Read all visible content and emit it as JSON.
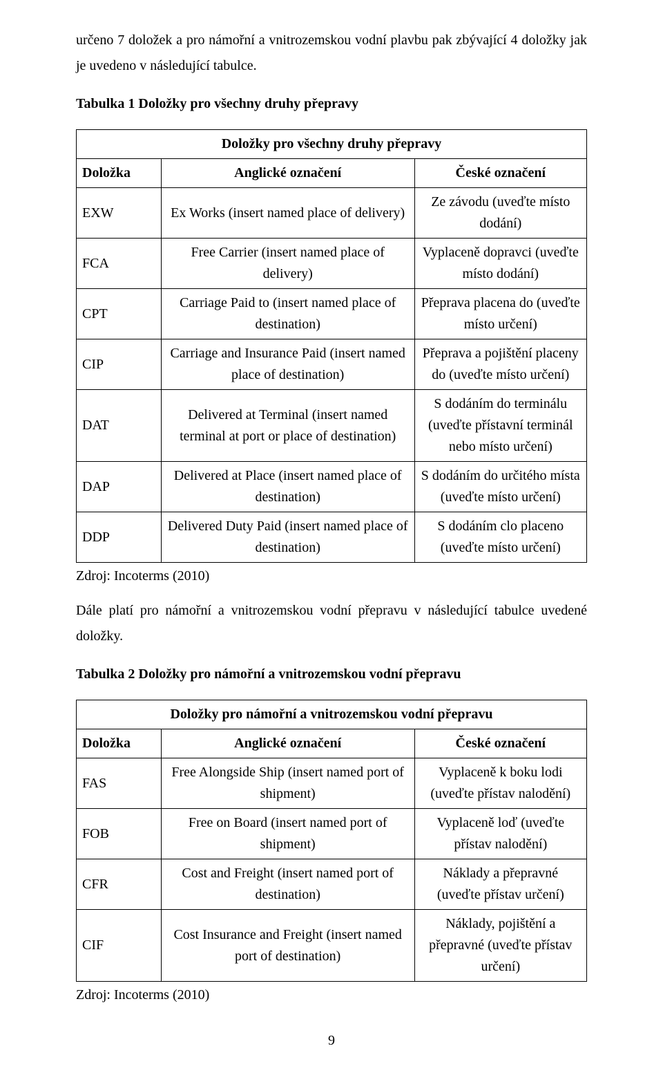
{
  "intro": "určeno 7 doložek a pro námořní a vnitrozemskou vodní plavbu pak zbývající 4 doložky jak je uvedeno v následující tabulce.",
  "table1": {
    "caption": "Tabulka 1 Doložky pro všechny druhy přepravy",
    "banner": "Doložky pro všechny druhy přepravy",
    "headers": {
      "code": "Doložka",
      "en": "Anglické označení",
      "cz": "České označení"
    },
    "rows": [
      {
        "code": "EXW",
        "en": "Ex Works (insert named place of delivery)",
        "cz": "Ze závodu (uveďte místo dodání)"
      },
      {
        "code": "FCA",
        "en": "Free Carrier (insert named place of delivery)",
        "cz": "Vyplaceně dopravci (uveďte místo dodání)"
      },
      {
        "code": "CPT",
        "en": "Carriage Paid to (insert named place of destination)",
        "cz": "Přeprava placena do (uveďte místo určení)"
      },
      {
        "code": "CIP",
        "en": "Carriage and Insurance Paid (insert named place of destination)",
        "cz": "Přeprava a pojištění placeny do (uveďte místo určení)"
      },
      {
        "code": "DAT",
        "en": "Delivered at Terminal (insert named terminal at port or place of destination)",
        "cz": "S dodáním do terminálu (uveďte přístavní terminál nebo místo určení)"
      },
      {
        "code": "DAP",
        "en": "Delivered at Place (insert named place of destination)",
        "cz": "S dodáním do určitého místa (uveďte místo určení)"
      },
      {
        "code": "DDP",
        "en": "Delivered Duty Paid (insert named place of destination)",
        "cz": "S dodáním clo placeno (uveďte místo určení)"
      }
    ],
    "source": "Zdroj: Incoterms (2010)"
  },
  "midpara": "Dále platí pro námořní a vnitrozemskou vodní přepravu v následující tabulce uvedené doložky.",
  "table2": {
    "caption": "Tabulka 2 Doložky pro námořní a vnitrozemskou vodní přepravu",
    "banner": "Doložky pro námořní a vnitrozemskou vodní přepravu",
    "headers": {
      "code": "Doložka",
      "en": "Anglické označení",
      "cz": "České označení"
    },
    "rows": [
      {
        "code": "FAS",
        "en": "Free Alongside Ship (insert named port of shipment)",
        "cz": "Vyplaceně k boku lodi (uveďte přístav nalodění)"
      },
      {
        "code": "FOB",
        "en": "Free on Board (insert named port of shipment)",
        "cz": "Vyplaceně loď (uveďte přístav nalodění)"
      },
      {
        "code": "CFR",
        "en": "Cost and Freight (insert named port of destination)",
        "cz": "Náklady a přepravné (uveďte přístav určení)"
      },
      {
        "code": "CIF",
        "en": "Cost Insurance and Freight (insert named port of destination)",
        "cz": "Náklady, pojištění a přepravné (uveďte přístav určení)"
      }
    ],
    "source": "Zdroj: Incoterms (2010)"
  },
  "pageNumber": "9"
}
